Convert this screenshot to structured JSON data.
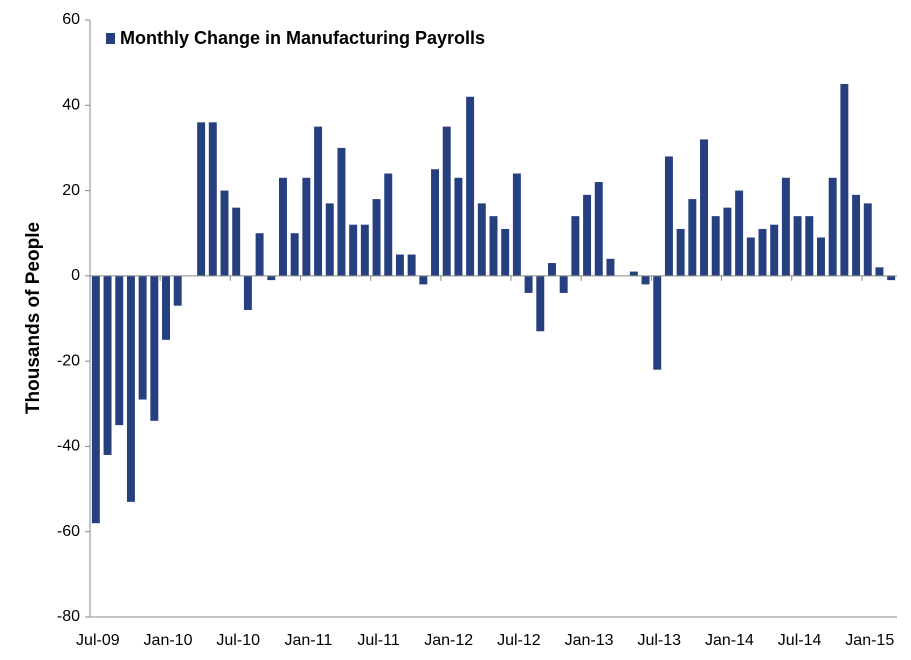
{
  "chart_data": {
    "type": "bar",
    "y_label": "Thousands of People",
    "categories": [
      "Jul-09",
      null,
      null,
      null,
      null,
      null,
      "Jan-10",
      null,
      null,
      null,
      null,
      null,
      "Jul-10",
      null,
      null,
      null,
      null,
      null,
      "Jan-11",
      null,
      null,
      null,
      null,
      null,
      "Jul-11",
      null,
      null,
      null,
      null,
      null,
      "Jan-12",
      null,
      null,
      null,
      null,
      null,
      "Jul-12",
      null,
      null,
      null,
      null,
      null,
      "Jan-13",
      null,
      null,
      null,
      null,
      null,
      "Jul-13",
      null,
      null,
      null,
      null,
      null,
      "Jan-14",
      null,
      null,
      null,
      null,
      null,
      "Jul-14",
      null,
      null,
      null,
      null,
      null,
      "Jan-15",
      null,
      null
    ],
    "series": [
      {
        "name": "Monthly Change in Manufacturing Payrolls",
        "color": "#253f7f",
        "values": [
          -58,
          -42,
          -35,
          -53,
          -29,
          -34,
          -15,
          -7,
          0,
          36,
          36,
          20,
          16,
          -8,
          10,
          -1,
          23,
          10,
          23,
          35,
          17,
          30,
          12,
          12,
          18,
          24,
          5,
          5,
          -2,
          25,
          35,
          23,
          42,
          17,
          14,
          11,
          24,
          -4,
          -13,
          3,
          -4,
          14,
          19,
          22,
          4,
          0,
          1,
          -2,
          -22,
          28,
          11,
          18,
          32,
          14,
          16,
          20,
          9,
          11,
          12,
          23,
          14,
          14,
          9,
          23,
          45,
          19,
          17,
          2,
          -1
        ]
      }
    ],
    "ylim": [
      -80,
      60
    ],
    "yticks": [
      -80,
      -60,
      -40,
      -20,
      0,
      20,
      40,
      60
    ],
    "grid": false,
    "legend": "top-left"
  }
}
